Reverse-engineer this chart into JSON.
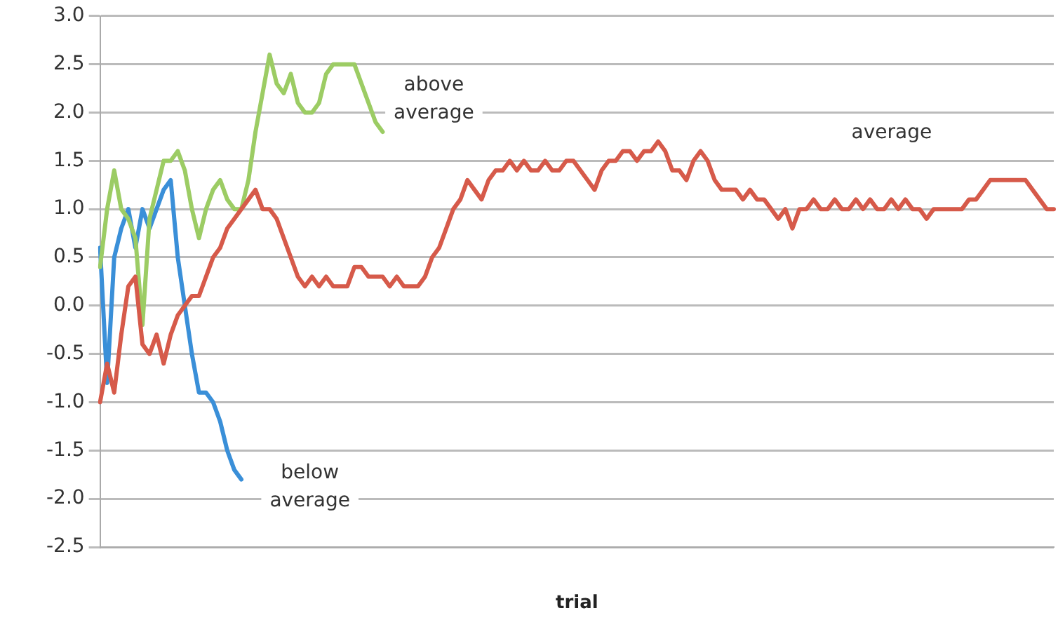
{
  "chart_data": {
    "type": "line",
    "xlabel": "trial",
    "categories": [
      null,
      null,
      null,
      null,
      null,
      null,
      null,
      null,
      null,
      null,
      null,
      null,
      null,
      null,
      null,
      null,
      null,
      null,
      null,
      null,
      null,
      null,
      null,
      null,
      null,
      null,
      null,
      null,
      null,
      null,
      null,
      null,
      null,
      null,
      null,
      null,
      null,
      null,
      null,
      null,
      null,
      null,
      null,
      null,
      null,
      null,
      null,
      null,
      null,
      null,
      null,
      null,
      null,
      null,
      null,
      null,
      null,
      null,
      null,
      null,
      null,
      null,
      null,
      null,
      null,
      null,
      null,
      null,
      null,
      null,
      null,
      null,
      null,
      null,
      null,
      null,
      null,
      null,
      null,
      null,
      null,
      null,
      null,
      null,
      null,
      null,
      null,
      null,
      null,
      null,
      null,
      null,
      null,
      null,
      null,
      null,
      null,
      null,
      null,
      null,
      null,
      null,
      null,
      null,
      null,
      null,
      null,
      null,
      null,
      null,
      null,
      null,
      null,
      null,
      null,
      null,
      null,
      null,
      null,
      null,
      null,
      null,
      null,
      null,
      null,
      null,
      null,
      null,
      null,
      null,
      null,
      null,
      null,
      null,
      null,
      null
    ],
    "series": [
      {
        "color": "#d65a4a",
        "values": [
          -1.0,
          -0.6,
          -0.9,
          -0.3,
          0.2,
          0.3,
          -0.4,
          -0.5,
          -0.3,
          -0.6,
          -0.3,
          -0.1,
          0.0,
          0.1,
          0.1,
          0.3,
          0.5,
          0.6,
          0.8,
          0.9,
          1.0,
          1.1,
          1.2,
          1.0,
          1.0,
          0.9,
          0.7,
          0.5,
          0.3,
          0.2,
          0.3,
          0.2,
          0.3,
          0.2,
          0.2,
          0.2,
          0.4,
          0.4,
          0.3,
          0.3,
          0.3,
          0.2,
          0.3,
          0.2,
          0.2,
          0.2,
          0.3,
          0.5,
          0.6,
          0.8,
          1.0,
          1.1,
          1.3,
          1.2,
          1.1,
          1.3,
          1.4,
          1.4,
          1.5,
          1.4,
          1.5,
          1.4,
          1.4,
          1.5,
          1.4,
          1.4,
          1.5,
          1.5,
          1.4,
          1.3,
          1.2,
          1.4,
          1.5,
          1.5,
          1.6,
          1.6,
          1.5,
          1.6,
          1.6,
          1.7,
          1.6,
          1.4,
          1.4,
          1.3,
          1.5,
          1.6,
          1.5,
          1.3,
          1.2,
          1.2,
          1.2,
          1.1,
          1.2,
          1.1,
          1.1,
          1.0,
          0.9,
          1.0,
          0.8,
          1.0,
          1.0,
          1.1,
          1.0,
          1.0,
          1.1,
          1.0,
          1.0,
          1.1,
          1.0,
          1.1,
          1.0,
          1.0,
          1.1,
          1.0,
          1.1,
          1.0,
          1.0,
          0.9,
          1.0,
          1.0,
          1.0,
          1.0,
          1.0,
          1.1,
          1.1,
          1.2,
          1.3,
          1.3,
          1.3,
          1.3,
          1.3,
          1.3,
          1.2,
          1.1,
          1.0,
          1.0
        ]
      },
      {
        "color": "#9ccc64",
        "values": [
          0.4,
          1.0,
          1.4,
          1.0,
          0.9,
          0.7,
          -0.2,
          0.9,
          1.2,
          1.5,
          1.5,
          1.6,
          1.4,
          1.0,
          0.7,
          1.0,
          1.2,
          1.3,
          1.1,
          1.0,
          1.0,
          1.3,
          1.8,
          2.2,
          2.6,
          2.3,
          2.2,
          2.4,
          2.1,
          2.0,
          2.0,
          2.1,
          2.4,
          2.5,
          2.5,
          2.5,
          2.5,
          2.3,
          2.1,
          1.9,
          1.8,
          null,
          null,
          null,
          null,
          null,
          null,
          null,
          null,
          null,
          null,
          null,
          null,
          null,
          null,
          null,
          null,
          null,
          null,
          null,
          null,
          null,
          null,
          null,
          null,
          null,
          null,
          null,
          null,
          null,
          null,
          null,
          null,
          null,
          null,
          null,
          null,
          null,
          null,
          null,
          null,
          null,
          null,
          null,
          null,
          null,
          null,
          null,
          null,
          null,
          null,
          null,
          null,
          null,
          null,
          null,
          null,
          null,
          null,
          null,
          null,
          null,
          null,
          null,
          null,
          null,
          null,
          null,
          null,
          null,
          null,
          null,
          null,
          null,
          null,
          null,
          null,
          null,
          null,
          null,
          null,
          null,
          null,
          null,
          null,
          null,
          null,
          null,
          null,
          null,
          null,
          null,
          null,
          null,
          null,
          null
        ]
      },
      {
        "color": "#3a8fd8",
        "values": [
          0.6,
          -0.8,
          0.5,
          0.8,
          1.0,
          0.6,
          1.0,
          0.8,
          1.0,
          1.2,
          1.3,
          0.5,
          0.0,
          -0.5,
          -0.9,
          -0.9,
          -1.0,
          -1.2,
          -1.5,
          -1.7,
          -1.8,
          null,
          null,
          null,
          null,
          null,
          null,
          null,
          null,
          null,
          null,
          null,
          null,
          null,
          null,
          null,
          null,
          null,
          null,
          null,
          null,
          null,
          null,
          null,
          null,
          null,
          null,
          null,
          null,
          null,
          null,
          null,
          null,
          null,
          null,
          null,
          null,
          null,
          null,
          null,
          null,
          null,
          null,
          null,
          null,
          null,
          null,
          null,
          null,
          null,
          null,
          null,
          null,
          null,
          null,
          null,
          null,
          null,
          null,
          null,
          null,
          null,
          null,
          null,
          null,
          null,
          null,
          null,
          null,
          null,
          null,
          null,
          null,
          null,
          null,
          null,
          null,
          null,
          null,
          null,
          null,
          null,
          null,
          null,
          null,
          null,
          null,
          null,
          null,
          null,
          null,
          null,
          null,
          null,
          null,
          null,
          null,
          null,
          null,
          null,
          null,
          null,
          null,
          null,
          null,
          null,
          null,
          null,
          null,
          null,
          null,
          null,
          null,
          null,
          null,
          null
        ]
      }
    ],
    "ylim": [
      -2.5,
      3.0
    ],
    "yticks": [
      -2.5,
      {
        "value": -2,
        "label": "-2.0"
      },
      -1.5,
      {
        "value": -1,
        "label": "-1.0"
      },
      -0.5,
      {
        "value": 0,
        "label": "0.0"
      },
      0.5,
      {
        "value": 1,
        "label": "1.0"
      },
      1.5,
      {
        "value": 2,
        "label": "2.0"
      },
      2.5,
      {
        "value": 3,
        "label": "3.0"
      }
    ],
    "grid": "y",
    "marker": "none",
    "line_style": "solid",
    "annotations": [
      "above average",
      "average",
      "below average"
    ]
  }
}
